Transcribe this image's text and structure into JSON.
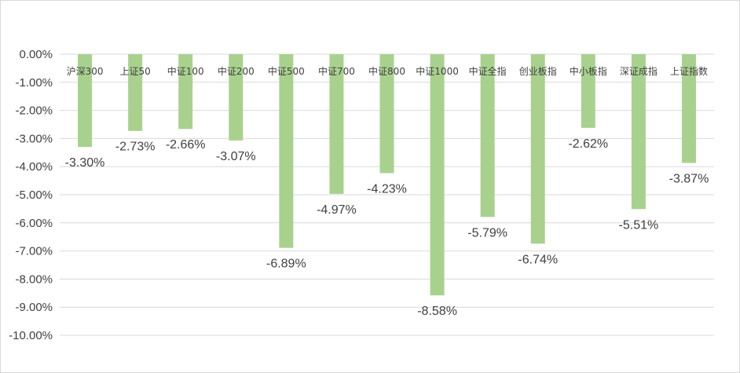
{
  "chart_data": {
    "type": "bar",
    "categories": [
      "沪深300",
      "上证50",
      "中证100",
      "中证200",
      "中证500",
      "中证700",
      "中证800",
      "中证1000",
      "中证全指",
      "创业板指",
      "中小板指",
      "深证成指",
      "上证指数"
    ],
    "values": [
      -3.3,
      -2.73,
      -2.66,
      -3.07,
      -6.89,
      -4.97,
      -4.23,
      -8.58,
      -5.79,
      -6.74,
      -2.62,
      -5.51,
      -3.87
    ],
    "data_labels": [
      "-3.30%",
      "-2.73%",
      "-2.66%",
      "-3.07%",
      "-6.89%",
      "-4.97%",
      "-4.23%",
      "-8.58%",
      "-5.79%",
      "-6.74%",
      "-2.62%",
      "-5.51%",
      "-3.87%"
    ],
    "y_ticks": [
      "0.00%",
      "-1.00%",
      "-2.00%",
      "-3.00%",
      "-4.00%",
      "-5.00%",
      "-6.00%",
      "-7.00%",
      "-8.00%",
      "-9.00%",
      "-10.00%"
    ],
    "ylim": [
      -10,
      0
    ],
    "grid": true,
    "bar_color": "#a9d18e",
    "title": "",
    "xlabel": "",
    "ylabel": ""
  }
}
